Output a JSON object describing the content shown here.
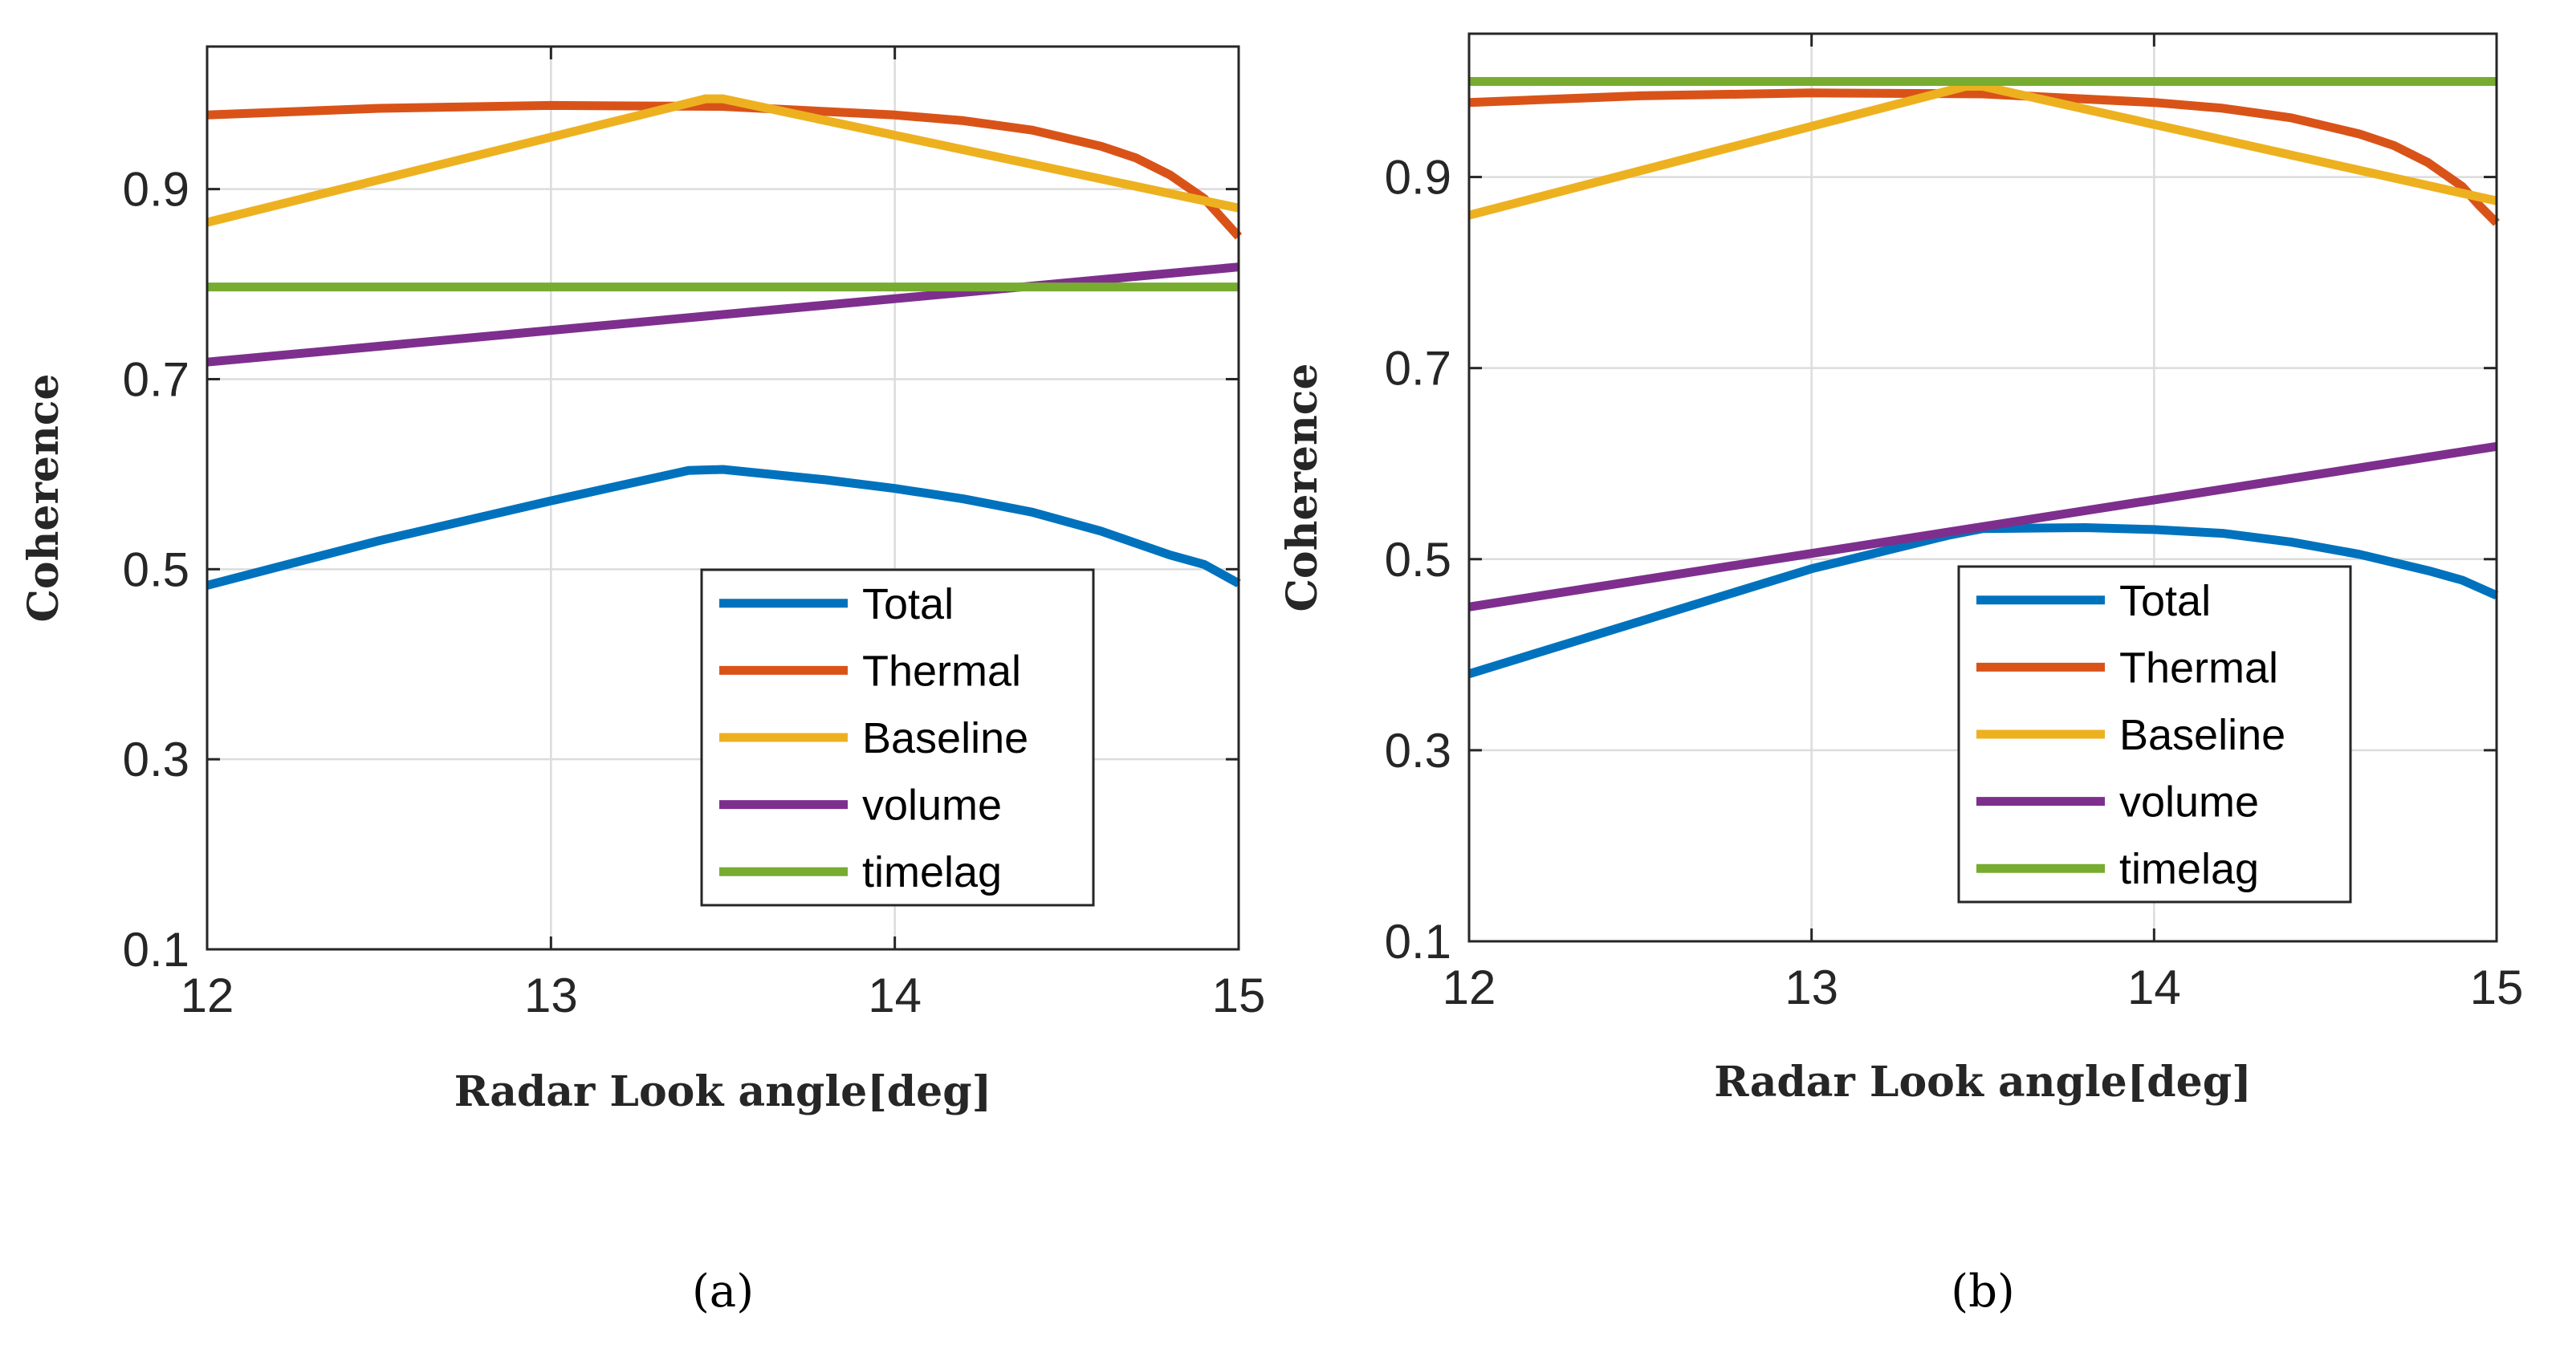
{
  "chart_data": [
    {
      "type": "line",
      "panel_label": "(a)",
      "xlabel": "Radar Look angle[deg]",
      "ylabel": "Coherence",
      "xlim": [
        12,
        15
      ],
      "ylim": [
        0.1,
        1.05
      ],
      "xticks": [
        "12",
        "13",
        "14",
        "15"
      ],
      "yticks": [
        "0.1",
        "0.3",
        "0.5",
        "0.7",
        "0.9"
      ],
      "grid": true,
      "legend_position": "bottom-right",
      "series": [
        {
          "name": "Total",
          "color": "#0072BD",
          "x": [
            12,
            12.5,
            13,
            13.4,
            13.5,
            13.8,
            14,
            14.2,
            14.4,
            14.6,
            14.8,
            14.9,
            15
          ],
          "y": [
            0.483,
            0.53,
            0.572,
            0.604,
            0.605,
            0.594,
            0.585,
            0.574,
            0.56,
            0.54,
            0.515,
            0.505,
            0.485
          ]
        },
        {
          "name": "Thermal",
          "color": "#D95319",
          "x": [
            12,
            12.5,
            13,
            13.5,
            14,
            14.2,
            14.4,
            14.6,
            14.7,
            14.8,
            14.9,
            14.95,
            15
          ],
          "y": [
            0.978,
            0.985,
            0.988,
            0.987,
            0.978,
            0.972,
            0.962,
            0.945,
            0.933,
            0.915,
            0.89,
            0.87,
            0.85
          ]
        },
        {
          "name": "Baseline",
          "color": "#EDB120",
          "x": [
            12,
            13.45,
            13.5,
            15
          ],
          "y": [
            0.865,
            0.995,
            0.995,
            0.88
          ]
        },
        {
          "name": "volume",
          "color": "#7E2F8E",
          "x": [
            12,
            15
          ],
          "y": [
            0.718,
            0.818
          ]
        },
        {
          "name": "timelag",
          "color": "#77AC30",
          "x": [
            12,
            15
          ],
          "y": [
            0.797,
            0.797
          ]
        }
      ]
    },
    {
      "type": "line",
      "panel_label": "(b)",
      "xlabel": "Radar Look angle[deg]",
      "ylabel": "Coherence",
      "xlim": [
        12,
        15
      ],
      "ylim": [
        0.1,
        1.05
      ],
      "xticks": [
        "12",
        "13",
        "14",
        "15"
      ],
      "yticks": [
        "0.1",
        "0.3",
        "0.5",
        "0.7",
        "0.9"
      ],
      "grid": true,
      "legend_position": "bottom-right",
      "series": [
        {
          "name": "Total",
          "color": "#0072BD",
          "x": [
            12,
            12.5,
            13,
            13.4,
            13.5,
            13.8,
            14,
            14.2,
            14.4,
            14.6,
            14.8,
            14.9,
            15
          ],
          "y": [
            0.38,
            0.435,
            0.49,
            0.525,
            0.532,
            0.533,
            0.531,
            0.527,
            0.518,
            0.505,
            0.488,
            0.478,
            0.462
          ]
        },
        {
          "name": "Thermal",
          "color": "#D95319",
          "x": [
            12,
            12.5,
            13,
            13.5,
            14,
            14.2,
            14.4,
            14.6,
            14.7,
            14.8,
            14.9,
            14.95,
            15
          ],
          "y": [
            0.978,
            0.985,
            0.988,
            0.987,
            0.978,
            0.972,
            0.962,
            0.945,
            0.933,
            0.915,
            0.89,
            0.87,
            0.852
          ]
        },
        {
          "name": "Baseline",
          "color": "#EDB120",
          "x": [
            12,
            13.45,
            13.5,
            15
          ],
          "y": [
            0.86,
            0.995,
            0.995,
            0.875
          ]
        },
        {
          "name": "volume",
          "color": "#7E2F8E",
          "x": [
            12,
            15
          ],
          "y": [
            0.45,
            0.618
          ]
        },
        {
          "name": "timelag",
          "color": "#77AC30",
          "x": [
            12,
            15
          ],
          "y": [
            1.0,
            1.0
          ]
        }
      ]
    }
  ]
}
